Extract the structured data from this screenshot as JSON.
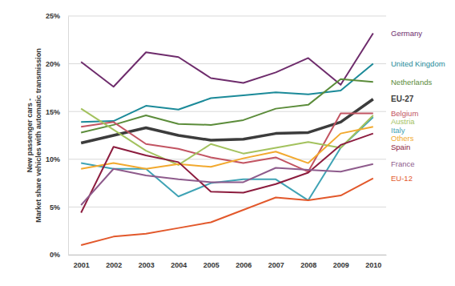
{
  "chart_data": {
    "type": "line",
    "y_label": [
      "New passenger cars -",
      "Market share vehicles with automatic transmission"
    ],
    "x": [
      2001,
      2002,
      2003,
      2004,
      2005,
      2006,
      2007,
      2008,
      2009,
      2010
    ],
    "xlim": [
      2000.6,
      2010.4
    ],
    "xticks": [
      2001,
      2002,
      2003,
      2004,
      2005,
      2006,
      2007,
      2008,
      2009,
      2010
    ],
    "ylim": [
      0,
      25
    ],
    "yticks": [
      {
        "value": 0,
        "label": "0%"
      },
      {
        "value": 5,
        "label": "5%"
      },
      {
        "value": 10,
        "label": "10%"
      },
      {
        "value": 15,
        "label": "15%"
      },
      {
        "value": 20,
        "label": "20%"
      },
      {
        "value": 25,
        "label": "25%"
      }
    ],
    "grid": true,
    "series": [
      {
        "name": "Germany",
        "color": "#6e2c6c",
        "line_style": "solid",
        "values": [
          20.2,
          17.6,
          21.2,
          20.7,
          18.5,
          18.0,
          19.1,
          20.6,
          17.8,
          23.2
        ]
      },
      {
        "name": "United Kingdom",
        "color": "#1b8a99",
        "line_style": "solid",
        "values": [
          13.9,
          14.0,
          15.6,
          15.2,
          16.4,
          16.7,
          17.0,
          16.8,
          17.2,
          20.0
        ]
      },
      {
        "name": "Netherlands",
        "color": "#5b8c3a",
        "line_style": "solid",
        "values": [
          12.8,
          13.6,
          14.6,
          13.7,
          13.6,
          14.1,
          15.3,
          15.7,
          18.4,
          18.1
        ]
      },
      {
        "name": "EU-27",
        "color": "#3c3c3c",
        "line_style": "thick",
        "values": [
          11.7,
          12.5,
          13.3,
          12.5,
          12.0,
          12.1,
          12.7,
          12.8,
          13.9,
          16.3
        ]
      },
      {
        "name": "Belgium",
        "color": "#c25462",
        "line_style": "solid",
        "values": [
          13.4,
          13.9,
          11.6,
          11.1,
          10.2,
          9.6,
          10.2,
          8.7,
          14.8,
          14.8
        ]
      },
      {
        "name": "Italy",
        "color": "#3fa3b5",
        "line_style": "solid",
        "values": [
          9.6,
          9.0,
          9.0,
          6.1,
          7.5,
          7.9,
          7.9,
          5.7,
          11.2,
          14.4
        ]
      },
      {
        "name": "Austria",
        "color": "#a3c25e",
        "line_style": "solid",
        "values": [
          15.3,
          13.1,
          10.9,
          9.4,
          11.6,
          10.6,
          11.2,
          11.8,
          11.2,
          14.6
        ]
      },
      {
        "name": "Others",
        "color": "#f2a92e",
        "line_style": "solid",
        "values": [
          9.0,
          9.6,
          9.0,
          9.5,
          9.2,
          10.1,
          10.8,
          9.6,
          12.7,
          13.4
        ]
      },
      {
        "name": "Spain",
        "color": "#8c1c3e",
        "line_style": "solid",
        "values": [
          4.4,
          11.3,
          10.4,
          9.7,
          6.6,
          6.5,
          7.4,
          8.6,
          11.5,
          12.7
        ]
      },
      {
        "name": "France",
        "color": "#8e5b8c",
        "line_style": "solid",
        "values": [
          5.2,
          9.0,
          8.3,
          7.9,
          7.6,
          7.6,
          9.1,
          8.9,
          8.7,
          9.5
        ]
      },
      {
        "name": "EU-12",
        "color": "#e2582b",
        "line_style": "solid",
        "values": [
          1.0,
          1.9,
          2.2,
          2.8,
          3.4,
          4.7,
          6.0,
          5.7,
          6.2,
          8.0
        ]
      }
    ]
  }
}
